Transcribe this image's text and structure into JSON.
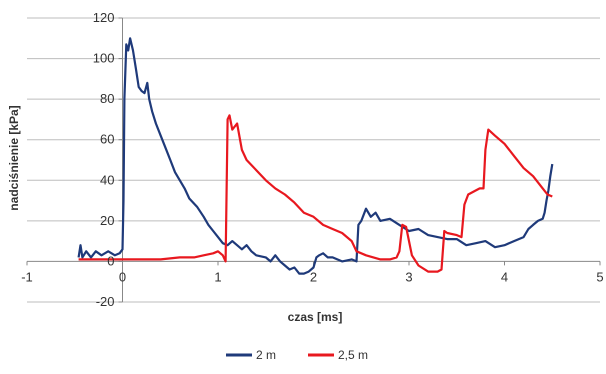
{
  "chart_data": {
    "type": "line",
    "xlabel": "czas [ms]",
    "ylabel": "nadciśnienie [kPa]",
    "xlim": [
      -1,
      5
    ],
    "ylim": [
      -20,
      120
    ],
    "x_ticks": [
      -1,
      0,
      1,
      2,
      3,
      4,
      5
    ],
    "y_ticks": [
      -20,
      0,
      20,
      40,
      60,
      80,
      100,
      120
    ],
    "grid": "horizontal",
    "legend_position": "bottom",
    "series": [
      {
        "name": "2 m",
        "color": "#1f3a7a",
        "points": [
          [
            -0.46,
            2
          ],
          [
            -0.44,
            8
          ],
          [
            -0.42,
            2
          ],
          [
            -0.38,
            5
          ],
          [
            -0.33,
            2
          ],
          [
            -0.28,
            5
          ],
          [
            -0.22,
            3
          ],
          [
            -0.15,
            5
          ],
          [
            -0.08,
            3
          ],
          [
            -0.03,
            4
          ],
          [
            0.0,
            6
          ],
          [
            0.01,
            30
          ],
          [
            0.02,
            80
          ],
          [
            0.04,
            107
          ],
          [
            0.06,
            104
          ],
          [
            0.08,
            110
          ],
          [
            0.11,
            104
          ],
          [
            0.14,
            95
          ],
          [
            0.17,
            86
          ],
          [
            0.2,
            84
          ],
          [
            0.23,
            83
          ],
          [
            0.26,
            88
          ],
          [
            0.28,
            80
          ],
          [
            0.31,
            74
          ],
          [
            0.35,
            68
          ],
          [
            0.4,
            62
          ],
          [
            0.45,
            56
          ],
          [
            0.5,
            50
          ],
          [
            0.55,
            44
          ],
          [
            0.6,
            40
          ],
          [
            0.65,
            36
          ],
          [
            0.7,
            31
          ],
          [
            0.78,
            27
          ],
          [
            0.85,
            22
          ],
          [
            0.9,
            18
          ],
          [
            0.95,
            15
          ],
          [
            1.0,
            12
          ],
          [
            1.05,
            9
          ],
          [
            1.1,
            8
          ],
          [
            1.15,
            10
          ],
          [
            1.2,
            8
          ],
          [
            1.25,
            6
          ],
          [
            1.3,
            8
          ],
          [
            1.35,
            5
          ],
          [
            1.4,
            3
          ],
          [
            1.5,
            2
          ],
          [
            1.55,
            0
          ],
          [
            1.6,
            3
          ],
          [
            1.65,
            0
          ],
          [
            1.7,
            -2
          ],
          [
            1.75,
            -4
          ],
          [
            1.8,
            -3
          ],
          [
            1.85,
            -6
          ],
          [
            1.9,
            -6
          ],
          [
            1.95,
            -5
          ],
          [
            2.0,
            -3
          ],
          [
            2.03,
            2
          ],
          [
            2.06,
            3
          ],
          [
            2.1,
            4
          ],
          [
            2.15,
            2
          ],
          [
            2.2,
            2
          ],
          [
            2.3,
            0
          ],
          [
            2.4,
            1
          ],
          [
            2.45,
            0
          ],
          [
            2.47,
            18
          ],
          [
            2.5,
            20
          ],
          [
            2.55,
            26
          ],
          [
            2.6,
            22
          ],
          [
            2.65,
            24
          ],
          [
            2.7,
            20
          ],
          [
            2.8,
            21
          ],
          [
            2.9,
            18
          ],
          [
            3.0,
            15
          ],
          [
            3.1,
            16
          ],
          [
            3.2,
            13
          ],
          [
            3.3,
            12
          ],
          [
            3.4,
            11
          ],
          [
            3.5,
            11
          ],
          [
            3.6,
            8
          ],
          [
            3.7,
            9
          ],
          [
            3.8,
            10
          ],
          [
            3.9,
            7
          ],
          [
            4.0,
            8
          ],
          [
            4.1,
            10
          ],
          [
            4.2,
            12
          ],
          [
            4.25,
            16
          ],
          [
            4.3,
            18
          ],
          [
            4.35,
            20
          ],
          [
            4.4,
            21
          ],
          [
            4.42,
            24
          ],
          [
            4.44,
            30
          ],
          [
            4.46,
            35
          ],
          [
            4.48,
            42
          ],
          [
            4.5,
            48
          ]
        ]
      },
      {
        "name": "2,5 m",
        "color": "#e8181f",
        "points": [
          [
            -0.46,
            1
          ],
          [
            -0.2,
            1
          ],
          [
            0.0,
            1
          ],
          [
            0.2,
            1
          ],
          [
            0.4,
            1
          ],
          [
            0.6,
            2
          ],
          [
            0.75,
            2
          ],
          [
            0.85,
            3
          ],
          [
            0.95,
            4
          ],
          [
            1.0,
            5
          ],
          [
            1.05,
            3
          ],
          [
            1.08,
            0
          ],
          [
            1.1,
            70
          ],
          [
            1.12,
            72
          ],
          [
            1.15,
            65
          ],
          [
            1.2,
            68
          ],
          [
            1.25,
            55
          ],
          [
            1.3,
            50
          ],
          [
            1.4,
            45
          ],
          [
            1.5,
            40
          ],
          [
            1.6,
            36
          ],
          [
            1.7,
            33
          ],
          [
            1.8,
            29
          ],
          [
            1.9,
            24
          ],
          [
            2.0,
            22
          ],
          [
            2.1,
            18
          ],
          [
            2.2,
            16
          ],
          [
            2.3,
            14
          ],
          [
            2.4,
            10
          ],
          [
            2.45,
            5
          ],
          [
            2.55,
            3
          ],
          [
            2.7,
            1
          ],
          [
            2.8,
            1
          ],
          [
            2.87,
            2
          ],
          [
            2.9,
            5
          ],
          [
            2.93,
            18
          ],
          [
            2.97,
            17
          ],
          [
            3.0,
            10
          ],
          [
            3.03,
            3
          ],
          [
            3.1,
            -2
          ],
          [
            3.2,
            -5
          ],
          [
            3.3,
            -5
          ],
          [
            3.34,
            -4
          ],
          [
            3.37,
            15
          ],
          [
            3.4,
            14
          ],
          [
            3.5,
            13
          ],
          [
            3.55,
            12
          ],
          [
            3.58,
            28
          ],
          [
            3.62,
            33
          ],
          [
            3.7,
            35
          ],
          [
            3.74,
            36
          ],
          [
            3.78,
            36
          ],
          [
            3.8,
            55
          ],
          [
            3.83,
            65
          ],
          [
            3.9,
            62
          ],
          [
            4.0,
            58
          ],
          [
            4.1,
            52
          ],
          [
            4.2,
            46
          ],
          [
            4.3,
            42
          ],
          [
            4.4,
            36
          ],
          [
            4.45,
            33
          ],
          [
            4.5,
            32
          ]
        ]
      }
    ]
  }
}
